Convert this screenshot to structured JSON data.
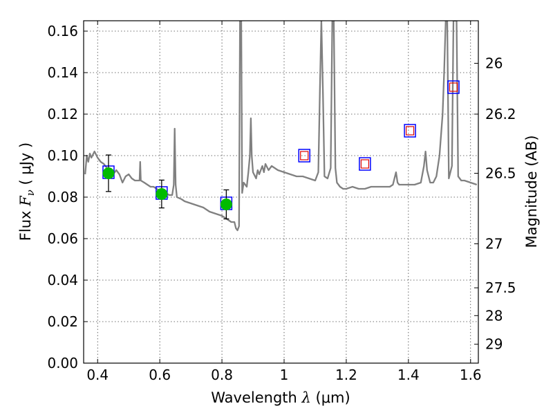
{
  "chart_data": {
    "type": "line",
    "xlabel": {
      "prefix": "Wavelength  ",
      "symbol": "λ",
      "suffix": " (μm)"
    },
    "ylabel": {
      "prefix": "Flux  ",
      "symbol": "F",
      "subscript": "ν",
      "suffix": "  ( μJy )"
    },
    "ylabel_right": "Magnitude (AB)",
    "xlim": [
      0.355,
      1.625
    ],
    "ylim": [
      0.0,
      0.165
    ],
    "x_ticks": [
      {
        "value": 0.4,
        "label": "0.4"
      },
      {
        "value": 0.6,
        "label": "0.6"
      },
      {
        "value": 0.8,
        "label": "0.8"
      },
      {
        "value": 1.0,
        "label": "1"
      },
      {
        "value": 1.2,
        "label": "1.2"
      },
      {
        "value": 1.4,
        "label": "1.4"
      },
      {
        "value": 1.6,
        "label": "1.6"
      }
    ],
    "y_ticks": [
      {
        "value": 0.0,
        "label": "0.00"
      },
      {
        "value": 0.02,
        "label": "0.02"
      },
      {
        "value": 0.04,
        "label": "0.04"
      },
      {
        "value": 0.06,
        "label": "0.06"
      },
      {
        "value": 0.08,
        "label": "0.08"
      },
      {
        "value": 0.1,
        "label": "0.10"
      },
      {
        "value": 0.12,
        "label": "0.12"
      },
      {
        "value": 0.14,
        "label": "0.14"
      },
      {
        "value": 0.16,
        "label": "0.16"
      }
    ],
    "right_ticks": [
      {
        "flux": 0.1445,
        "label": "26"
      },
      {
        "flux": 0.12,
        "label": "26.2"
      },
      {
        "flux": 0.0915,
        "label": "26.5"
      },
      {
        "flux": 0.0575,
        "label": "27"
      },
      {
        "flux": 0.0363,
        "label": "27.5"
      },
      {
        "flux": 0.0229,
        "label": "28"
      },
      {
        "flux": 0.0091,
        "label": "29"
      }
    ],
    "grid": true,
    "colors": {
      "model": "#808080",
      "observed": "#00bb00",
      "model_band": "#0000ff",
      "upper_limit": "#dd0000",
      "errorbar": "#000000"
    },
    "series": [
      {
        "kind": "model_sed",
        "points": [
          [
            0.36,
            0.091
          ],
          [
            0.365,
            0.1
          ],
          [
            0.37,
            0.097
          ],
          [
            0.375,
            0.101
          ],
          [
            0.38,
            0.099
          ],
          [
            0.39,
            0.102
          ],
          [
            0.4,
            0.099
          ],
          [
            0.41,
            0.097
          ],
          [
            0.42,
            0.096
          ],
          [
            0.43,
            0.094
          ],
          [
            0.44,
            0.093
          ],
          [
            0.45,
            0.091
          ],
          [
            0.46,
            0.093
          ],
          [
            0.47,
            0.091
          ],
          [
            0.48,
            0.087
          ],
          [
            0.49,
            0.09
          ],
          [
            0.5,
            0.091
          ],
          [
            0.51,
            0.089
          ],
          [
            0.52,
            0.088
          ],
          [
            0.53,
            0.088
          ],
          [
            0.535,
            0.088
          ],
          [
            0.537,
            0.097
          ],
          [
            0.539,
            0.088
          ],
          [
            0.55,
            0.087
          ],
          [
            0.56,
            0.086
          ],
          [
            0.57,
            0.085
          ],
          [
            0.58,
            0.085
          ],
          [
            0.59,
            0.084
          ],
          [
            0.6,
            0.083
          ],
          [
            0.61,
            0.082
          ],
          [
            0.62,
            0.082
          ],
          [
            0.63,
            0.081
          ],
          [
            0.64,
            0.081
          ],
          [
            0.645,
            0.086
          ],
          [
            0.648,
            0.113
          ],
          [
            0.651,
            0.086
          ],
          [
            0.655,
            0.08
          ],
          [
            0.67,
            0.079
          ],
          [
            0.68,
            0.078
          ],
          [
            0.7,
            0.077
          ],
          [
            0.72,
            0.076
          ],
          [
            0.74,
            0.075
          ],
          [
            0.76,
            0.073
          ],
          [
            0.78,
            0.072
          ],
          [
            0.8,
            0.071
          ],
          [
            0.82,
            0.069
          ],
          [
            0.83,
            0.068
          ],
          [
            0.84,
            0.068
          ],
          [
            0.845,
            0.065
          ],
          [
            0.85,
            0.064
          ],
          [
            0.855,
            0.066
          ],
          [
            0.858,
            0.165
          ],
          [
            0.862,
            0.165
          ],
          [
            0.865,
            0.082
          ],
          [
            0.87,
            0.087
          ],
          [
            0.88,
            0.085
          ],
          [
            0.885,
            0.092
          ],
          [
            0.89,
            0.1
          ],
          [
            0.893,
            0.118
          ],
          [
            0.896,
            0.1
          ],
          [
            0.9,
            0.092
          ],
          [
            0.91,
            0.089
          ],
          [
            0.915,
            0.093
          ],
          [
            0.92,
            0.091
          ],
          [
            0.93,
            0.095
          ],
          [
            0.935,
            0.092
          ],
          [
            0.94,
            0.096
          ],
          [
            0.95,
            0.093
          ],
          [
            0.96,
            0.095
          ],
          [
            0.97,
            0.094
          ],
          [
            0.98,
            0.093
          ],
          [
            1.0,
            0.092
          ],
          [
            1.02,
            0.091
          ],
          [
            1.04,
            0.09
          ],
          [
            1.06,
            0.09
          ],
          [
            1.08,
            0.089
          ],
          [
            1.1,
            0.088
          ],
          [
            1.11,
            0.092
          ],
          [
            1.115,
            0.13
          ],
          [
            1.12,
            0.165
          ],
          [
            1.125,
            0.13
          ],
          [
            1.13,
            0.09
          ],
          [
            1.14,
            0.089
          ],
          [
            1.15,
            0.094
          ],
          [
            1.155,
            0.165
          ],
          [
            1.16,
            0.165
          ],
          [
            1.165,
            0.094
          ],
          [
            1.17,
            0.087
          ],
          [
            1.18,
            0.085
          ],
          [
            1.19,
            0.084
          ],
          [
            1.2,
            0.084
          ],
          [
            1.22,
            0.085
          ],
          [
            1.24,
            0.084
          ],
          [
            1.26,
            0.084
          ],
          [
            1.28,
            0.085
          ],
          [
            1.3,
            0.085
          ],
          [
            1.32,
            0.085
          ],
          [
            1.34,
            0.085
          ],
          [
            1.35,
            0.086
          ],
          [
            1.36,
            0.092
          ],
          [
            1.365,
            0.087
          ],
          [
            1.37,
            0.086
          ],
          [
            1.4,
            0.086
          ],
          [
            1.42,
            0.086
          ],
          [
            1.44,
            0.087
          ],
          [
            1.45,
            0.095
          ],
          [
            1.455,
            0.102
          ],
          [
            1.46,
            0.093
          ],
          [
            1.47,
            0.087
          ],
          [
            1.48,
            0.087
          ],
          [
            1.49,
            0.09
          ],
          [
            1.5,
            0.1
          ],
          [
            1.51,
            0.12
          ],
          [
            1.515,
            0.14
          ],
          [
            1.52,
            0.165
          ],
          [
            1.525,
            0.165
          ],
          [
            1.53,
            0.089
          ],
          [
            1.54,
            0.095
          ],
          [
            1.545,
            0.165
          ],
          [
            1.55,
            0.165
          ],
          [
            1.555,
            0.165
          ],
          [
            1.56,
            0.09
          ],
          [
            1.57,
            0.088
          ],
          [
            1.58,
            0.088
          ],
          [
            1.6,
            0.087
          ],
          [
            1.62,
            0.086
          ]
        ]
      },
      {
        "kind": "model_bands",
        "points": [
          [
            0.435,
            0.092
          ],
          [
            0.606,
            0.082
          ],
          [
            0.814,
            0.077
          ],
          [
            1.065,
            0.1
          ],
          [
            1.26,
            0.096
          ],
          [
            1.405,
            0.112
          ],
          [
            1.545,
            0.133
          ]
        ]
      },
      {
        "kind": "observed",
        "points": [
          {
            "x": 0.435,
            "y": 0.0915,
            "err": 0.0088
          },
          {
            "x": 0.606,
            "y": 0.0815,
            "err": 0.0067
          },
          {
            "x": 0.814,
            "y": 0.0765,
            "err": 0.007
          }
        ]
      },
      {
        "kind": "upper_limits",
        "points": [
          [
            1.065,
            0.1
          ],
          [
            1.26,
            0.096
          ],
          [
            1.405,
            0.112
          ],
          [
            1.545,
            0.133
          ]
        ]
      }
    ]
  }
}
